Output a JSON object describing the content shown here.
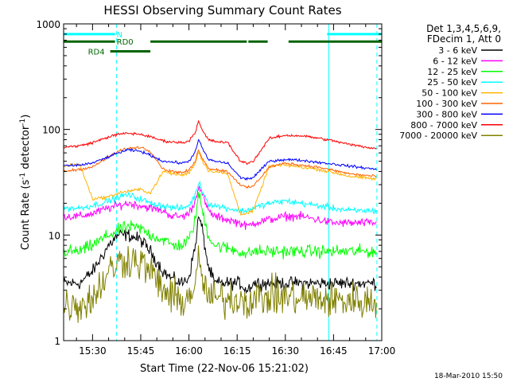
{
  "chart_data": {
    "type": "line",
    "title": "HESSI Observing Summary Count Rates",
    "xlabel": "Start Time (22-Nov-06 15:21:02)",
    "ylabel_parts": [
      "Count Rate (s",
      "-1",
      " detector",
      "-1",
      ")"
    ],
    "y_scale": "log",
    "ylim": [
      1,
      1000
    ],
    "y_ticks": [
      1,
      10,
      100,
      1000
    ],
    "y_tick_labels": [
      "1",
      "10",
      "100",
      "1000"
    ],
    "xlim_min": [
      921,
      1020
    ],
    "x_ticks_min": [
      930,
      945,
      960,
      975,
      990,
      1005,
      1020
    ],
    "x_tick_labels": [
      "15:30",
      "15:45",
      "16:00",
      "16:15",
      "16:30",
      "16:45",
      "17:00"
    ],
    "legend_header": [
      "Det 1,3,4,5,6,9,",
      "FDecim 1, Att 0"
    ],
    "legend_placement": "top-right",
    "footer_date": "18-Mar-2010 15:50",
    "grid": false,
    "series": [
      {
        "name": "3 - 6 keV",
        "color": "#000000",
        "sig": 0.12,
        "x": [
          921,
          926,
          930,
          935,
          938,
          941,
          945,
          948,
          952,
          955,
          958,
          960,
          962,
          963,
          964,
          966,
          968,
          972,
          976,
          978,
          980,
          985,
          990,
          995,
          1000,
          1005,
          1010,
          1018
        ],
        "y": [
          3.5,
          3.5,
          4.5,
          8,
          10,
          10,
          9,
          7,
          4.5,
          3.8,
          3.5,
          4,
          8,
          15,
          12,
          5,
          3.5,
          3.5,
          3.5,
          3,
          3.5,
          3.5,
          3.5,
          3.5,
          3.5,
          3.5,
          3.5,
          3.5
        ]
      },
      {
        "name": "6 - 12 keV",
        "color": "#ff00ff",
        "sig": 0.08,
        "x": [
          921,
          926,
          930,
          935,
          938,
          941,
          945,
          948,
          952,
          955,
          958,
          960,
          962,
          963,
          964,
          966,
          968,
          972,
          976,
          978,
          980,
          985,
          990,
          995,
          1000,
          1005,
          1010,
          1018
        ],
        "y": [
          15,
          15,
          16,
          18,
          19,
          20,
          19,
          18,
          17,
          15,
          15,
          16,
          21,
          30,
          25,
          17,
          15,
          14,
          13,
          12,
          13,
          14,
          15,
          15,
          14,
          13,
          13,
          13
        ]
      },
      {
        "name": "12 - 25 keV",
        "color": "#00ff00",
        "sig": 0.12,
        "x": [
          921,
          926,
          930,
          935,
          938,
          941,
          945,
          948,
          952,
          955,
          958,
          960,
          962,
          963,
          964,
          966,
          968,
          972,
          976,
          978,
          980,
          985,
          990,
          995,
          1000,
          1005,
          1010,
          1018
        ],
        "y": [
          7,
          7,
          8,
          10,
          11,
          12,
          11.5,
          10,
          9,
          8,
          8,
          9,
          14,
          25,
          18,
          10,
          8,
          7.5,
          7,
          6.5,
          7,
          7,
          7,
          7,
          7,
          7,
          7,
          7
        ]
      },
      {
        "name": "25 - 50 keV",
        "color": "#00ffff",
        "sig": 0.06,
        "x": [
          921,
          926,
          930,
          935,
          938,
          941,
          945,
          948,
          952,
          955,
          958,
          960,
          962,
          963,
          964,
          966,
          968,
          972,
          976,
          978,
          980,
          985,
          990,
          995,
          1000,
          1005,
          1010,
          1018
        ],
        "y": [
          18,
          18,
          19,
          21,
          23,
          24,
          22,
          20,
          19,
          18,
          18,
          19,
          24,
          32,
          27,
          20,
          19,
          18,
          17,
          17,
          18,
          20,
          21,
          20,
          19,
          18,
          17,
          17
        ]
      },
      {
        "name": "50 - 100 keV",
        "color": "#ffb400",
        "sig": 0.03,
        "gap": true,
        "x": [
          921,
          926,
          930,
          935,
          938,
          941,
          945,
          948,
          952,
          955,
          958,
          960,
          962,
          963,
          964,
          966,
          968,
          972,
          976,
          978,
          980,
          985,
          990,
          995,
          1000,
          1005,
          1010,
          1018
        ],
        "y": [
          45,
          47,
          22,
          23,
          25,
          26,
          27,
          25,
          40,
          38,
          37,
          39,
          48,
          62,
          52,
          41,
          40,
          38,
          16,
          16,
          17,
          45,
          46,
          44,
          42,
          39,
          36,
          34
        ]
      },
      {
        "name": "100 - 300 keV",
        "color": "#ff6400",
        "sig": 0.025,
        "gap": true,
        "x": [
          921,
          926,
          930,
          935,
          938,
          941,
          945,
          948,
          952,
          955,
          958,
          960,
          962,
          963,
          964,
          966,
          968,
          972,
          976,
          978,
          980,
          985,
          990,
          995,
          1000,
          1005,
          1010,
          1018
        ],
        "y": [
          40,
          42,
          44,
          55,
          62,
          66,
          68,
          62,
          42,
          40,
          39,
          41,
          50,
          65,
          55,
          43,
          42,
          40,
          30,
          28,
          29,
          44,
          48,
          46,
          44,
          41,
          38,
          36
        ]
      },
      {
        "name": "300 - 800 keV",
        "color": "#0000ff",
        "sig": 0.025,
        "x": [
          921,
          926,
          930,
          935,
          938,
          941,
          945,
          948,
          952,
          955,
          958,
          960,
          962,
          963,
          964,
          966,
          968,
          972,
          976,
          978,
          980,
          985,
          990,
          995,
          1000,
          1005,
          1010,
          1018
        ],
        "y": [
          45,
          46,
          48,
          55,
          60,
          64,
          62,
          57,
          50,
          49,
          48,
          50,
          62,
          80,
          68,
          52,
          50,
          48,
          35,
          34,
          35,
          50,
          52,
          51,
          49,
          47,
          45,
          42
        ]
      },
      {
        "name": "800 - 7000 keV",
        "color": "#ff0000",
        "sig": 0.025,
        "x": [
          921,
          926,
          930,
          935,
          938,
          941,
          945,
          948,
          952,
          955,
          958,
          960,
          962,
          963,
          964,
          966,
          968,
          972,
          976,
          978,
          980,
          985,
          990,
          995,
          1000,
          1005,
          1010,
          1018
        ],
        "y": [
          68,
          70,
          75,
          85,
          90,
          92,
          90,
          85,
          78,
          76,
          75,
          78,
          95,
          120,
          100,
          80,
          77,
          75,
          50,
          48,
          50,
          82,
          88,
          87,
          83,
          78,
          72,
          66
        ]
      },
      {
        "name": "7000 - 20000 keV",
        "color": "#808000",
        "sig": 0.35,
        "x": [
          921,
          926,
          930,
          935,
          938,
          941,
          945,
          948,
          952,
          955,
          958,
          960,
          962,
          963,
          964,
          966,
          968,
          972,
          976,
          978,
          980,
          985,
          990,
          995,
          1000,
          1005,
          1010,
          1018
        ],
        "y": [
          2.2,
          2.2,
          2.5,
          4.5,
          5.5,
          6,
          5.5,
          4.5,
          3,
          2.5,
          2.4,
          2.6,
          3.5,
          5.5,
          4,
          2.6,
          2.5,
          2.5,
          2.5,
          2.4,
          2.5,
          2.6,
          2.6,
          2.5,
          2.5,
          2.4,
          2.4,
          2.3
        ]
      }
    ],
    "status_flags": [
      {
        "label": "N",
        "color": "#00ffff",
        "segments": [
          [
            921,
            937
          ]
        ],
        "level": 800
      },
      {
        "label": "RD0",
        "color": "#006400",
        "segments": [
          [
            921,
            937
          ],
          [
            948,
            978
          ],
          [
            978.5,
            984.5
          ],
          [
            991,
            1020
          ]
        ],
        "level": 680
      },
      {
        "label": "RD4",
        "color": "#006400",
        "segments": [
          [
            935.5,
            948
          ]
        ],
        "level": 550
      },
      {
        "label": "",
        "color": "#00ffff",
        "segments": [
          [
            1003,
            1020
          ]
        ],
        "level": 800
      }
    ],
    "vertical_markers": [
      {
        "x": 921,
        "style": "solid",
        "color": "#00ffff"
      },
      {
        "x": 937.5,
        "style": "dashed",
        "color": "#00ffff"
      },
      {
        "x": 1003.5,
        "style": "solid",
        "color": "#00ffff"
      },
      {
        "x": 1018.5,
        "style": "dashed",
        "color": "#00ffff"
      }
    ]
  }
}
